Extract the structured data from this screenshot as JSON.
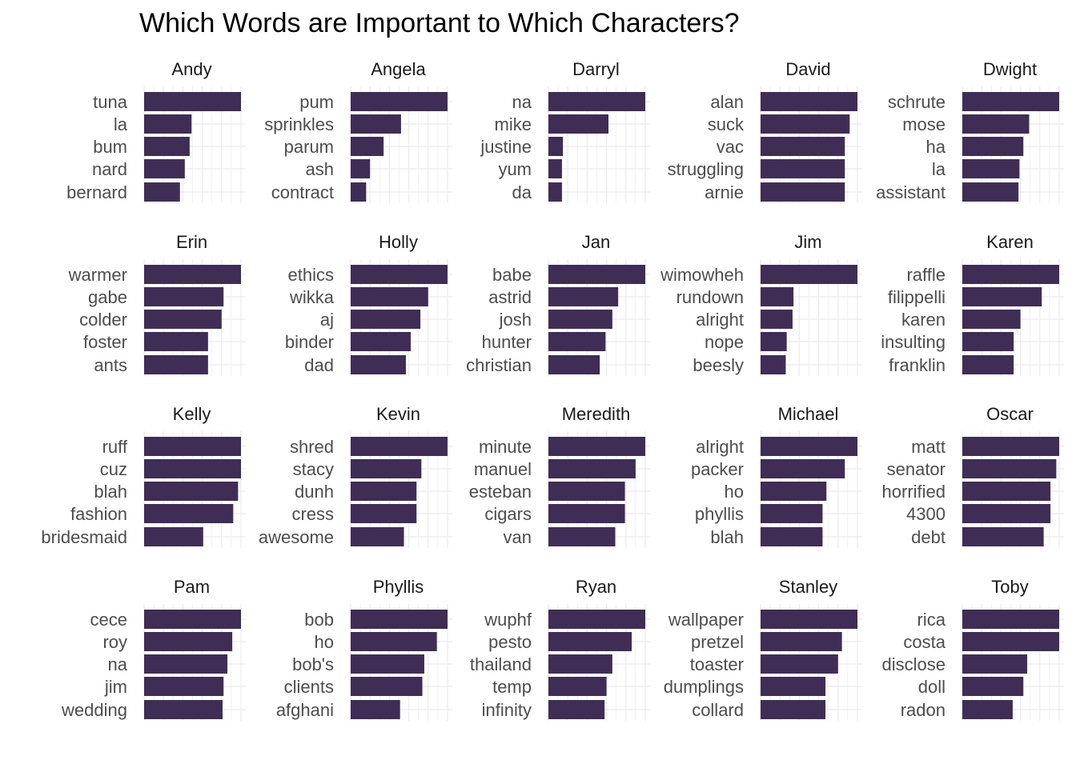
{
  "chart_data": {
    "type": "bar",
    "orientation": "horizontal",
    "title": "Which Words are Important to Which Characters?",
    "bar_color": "#3f2d55",
    "grid": true,
    "x_scale": "free",
    "facets": [
      {
        "name": "Andy",
        "categories": [
          "tuna",
          "la",
          "bum",
          "nard",
          "bernard"
        ],
        "values": [
          1.0,
          0.49,
          0.47,
          0.42,
          0.37
        ]
      },
      {
        "name": "Angela",
        "categories": [
          "pum",
          "sprinkles",
          "parum",
          "ash",
          "contract"
        ],
        "values": [
          1.0,
          0.52,
          0.34,
          0.2,
          0.16
        ]
      },
      {
        "name": "Darryl",
        "categories": [
          "na",
          "mike",
          "justine",
          "yum",
          "da"
        ],
        "values": [
          1.0,
          0.62,
          0.15,
          0.14,
          0.14
        ]
      },
      {
        "name": "David",
        "categories": [
          "alan",
          "suck",
          "vac",
          "struggling",
          "arnie"
        ],
        "values": [
          1.0,
          0.92,
          0.87,
          0.87,
          0.87
        ]
      },
      {
        "name": "Dwight",
        "categories": [
          "schrute",
          "mose",
          "ha",
          "la",
          "assistant"
        ],
        "values": [
          1.0,
          0.69,
          0.63,
          0.59,
          0.58
        ]
      },
      {
        "name": "Erin",
        "categories": [
          "warmer",
          "gabe",
          "colder",
          "foster",
          "ants"
        ],
        "values": [
          1.0,
          0.82,
          0.8,
          0.66,
          0.66
        ]
      },
      {
        "name": "Holly",
        "categories": [
          "ethics",
          "wikka",
          "aj",
          "binder",
          "dad"
        ],
        "values": [
          1.0,
          0.8,
          0.72,
          0.62,
          0.57
        ]
      },
      {
        "name": "Jan",
        "categories": [
          "babe",
          "astrid",
          "josh",
          "hunter",
          "christian"
        ],
        "values": [
          1.0,
          0.72,
          0.66,
          0.59,
          0.53
        ]
      },
      {
        "name": "Jim",
        "categories": [
          "wimowheh",
          "rundown",
          "alright",
          "nope",
          "beesly"
        ],
        "values": [
          1.0,
          0.34,
          0.33,
          0.27,
          0.26
        ]
      },
      {
        "name": "Karen",
        "categories": [
          "raffle",
          "filippelli",
          "karen",
          "insulting",
          "franklin"
        ],
        "values": [
          1.0,
          0.82,
          0.6,
          0.53,
          0.53
        ]
      },
      {
        "name": "Kelly",
        "categories": [
          "ruff",
          "cuz",
          "blah",
          "fashion",
          "bridesmaid"
        ],
        "values": [
          1.0,
          1.0,
          0.97,
          0.92,
          0.61
        ]
      },
      {
        "name": "Kevin",
        "categories": [
          "shred",
          "stacy",
          "dunh",
          "cress",
          "awesome"
        ],
        "values": [
          1.0,
          0.73,
          0.68,
          0.68,
          0.55
        ]
      },
      {
        "name": "Meredith",
        "categories": [
          "minute",
          "manuel",
          "esteban",
          "cigars",
          "van"
        ],
        "values": [
          1.0,
          0.9,
          0.79,
          0.79,
          0.69
        ]
      },
      {
        "name": "Michael",
        "categories": [
          "alright",
          "packer",
          "ho",
          "phyllis",
          "blah"
        ],
        "values": [
          1.0,
          0.87,
          0.68,
          0.64,
          0.64
        ]
      },
      {
        "name": "Oscar",
        "categories": [
          "matt",
          "senator",
          "horrified",
          "4300",
          "debt"
        ],
        "values": [
          1.0,
          0.97,
          0.91,
          0.91,
          0.84
        ]
      },
      {
        "name": "Pam",
        "categories": [
          "cece",
          "roy",
          "na",
          "jim",
          "wedding"
        ],
        "values": [
          1.0,
          0.91,
          0.86,
          0.82,
          0.81
        ]
      },
      {
        "name": "Phyllis",
        "categories": [
          "bob",
          "ho",
          "bob's",
          "clients",
          "afghani"
        ],
        "values": [
          1.0,
          0.89,
          0.76,
          0.74,
          0.51
        ]
      },
      {
        "name": "Ryan",
        "categories": [
          "wuphf",
          "pesto",
          "thailand",
          "temp",
          "infinity"
        ],
        "values": [
          1.0,
          0.86,
          0.66,
          0.6,
          0.58
        ]
      },
      {
        "name": "Stanley",
        "categories": [
          "wallpaper",
          "pretzel",
          "toaster",
          "dumplings",
          "collard"
        ],
        "values": [
          1.0,
          0.84,
          0.8,
          0.67,
          0.67
        ]
      },
      {
        "name": "Toby",
        "categories": [
          "rica",
          "costa",
          "disclose",
          "doll",
          "radon"
        ],
        "values": [
          1.0,
          1.0,
          0.67,
          0.63,
          0.52
        ]
      }
    ]
  }
}
